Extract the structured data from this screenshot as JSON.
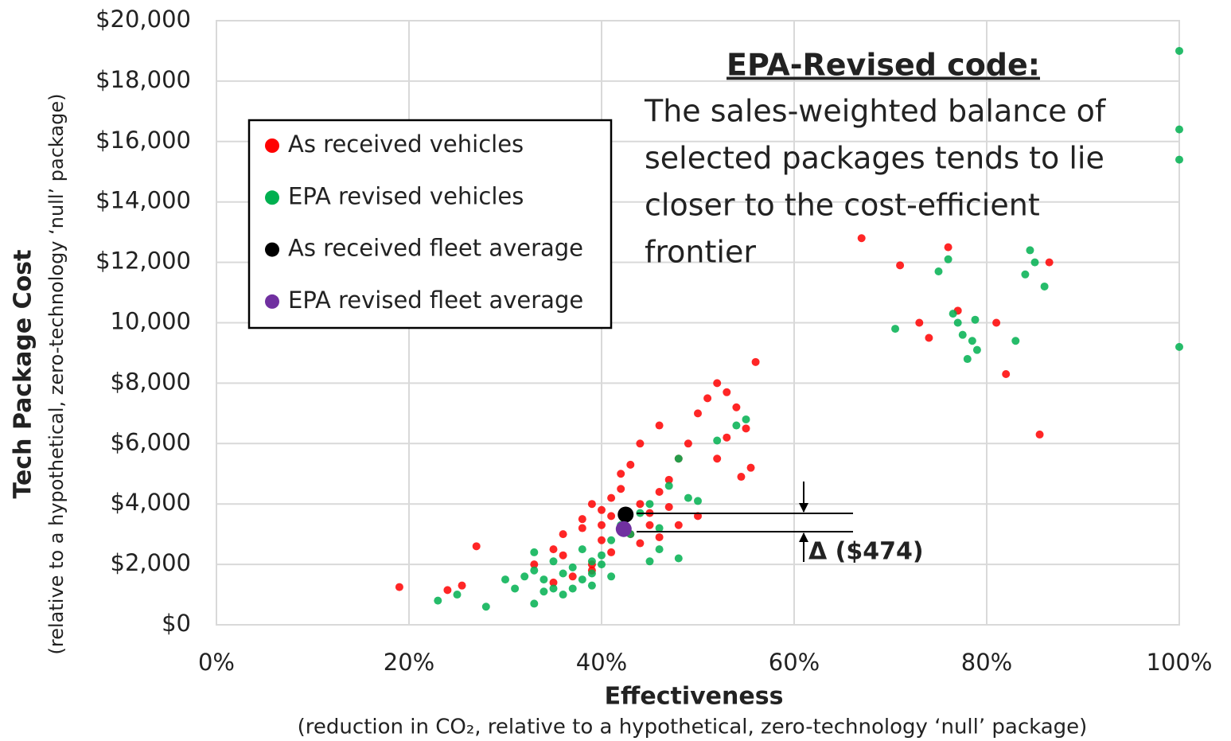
{
  "chart_data": {
    "type": "scatter",
    "x_label": "Effectiveness",
    "x_sublabel": "(reduction in CO₂, relative to a hypothetical, zero-technology ‘null’ package)",
    "y_label": "Tech Package Cost",
    "y_sublabel": "(relative to a hypothetical, zero-technology ‘null’ package)",
    "xlim": [
      0,
      100
    ],
    "ylim": [
      0,
      20000
    ],
    "xticks": [
      {
        "value": 0,
        "label": "0%"
      },
      {
        "value": 20,
        "label": "20%"
      },
      {
        "value": 40,
        "label": "40%"
      },
      {
        "value": 60,
        "label": "60%"
      },
      {
        "value": 80,
        "label": "80%"
      },
      {
        "value": 100,
        "label": "100%"
      }
    ],
    "yticks": [
      {
        "value": 0,
        "label": "$0"
      },
      {
        "value": 2000,
        "label": "$2,000"
      },
      {
        "value": 4000,
        "label": "$4,000"
      },
      {
        "value": 6000,
        "label": "$6,000"
      },
      {
        "value": 8000,
        "label": "$8,000"
      },
      {
        "value": 10000,
        "label": "10,000"
      },
      {
        "value": 12000,
        "label": "$12,000"
      },
      {
        "value": 14000,
        "label": "$14,000"
      },
      {
        "value": 16000,
        "label": "$16,000"
      },
      {
        "value": 18000,
        "label": "$18,000"
      },
      {
        "value": 20000,
        "label": "$20,000"
      }
    ],
    "grid": true,
    "legend": "upper left",
    "series": [
      {
        "name": "As received vehicles",
        "color": "#ff0000",
        "x": [
          24,
          25.5,
          19,
          27,
          33,
          35,
          36,
          38,
          39,
          40,
          41,
          42,
          43,
          44,
          45,
          46,
          47,
          48,
          49,
          50,
          51,
          52,
          53,
          54,
          55,
          55.5,
          54.5,
          56,
          40,
          41,
          39,
          37,
          43,
          44,
          46,
          48,
          42,
          38,
          40,
          45,
          47,
          50,
          53,
          52,
          77,
          85.5,
          73,
          81,
          71,
          67,
          74,
          82,
          86.5,
          76,
          44,
          46,
          41,
          36,
          39,
          35
        ],
        "values": [
          1150,
          1300,
          1250,
          2600,
          2000,
          2500,
          3000,
          3500,
          4000,
          3800,
          4200,
          4500,
          5300,
          4000,
          3700,
          4400,
          4800,
          5500,
          6000,
          7000,
          7500,
          8000,
          7700,
          7200,
          6500,
          5200,
          4900,
          8700,
          2800,
          2400,
          2000,
          1600,
          3000,
          2700,
          2900,
          3300,
          5000,
          3200,
          3300,
          3300,
          3900,
          3600,
          6200,
          5500,
          10400,
          6300,
          10000,
          10000,
          11900,
          12800,
          9500,
          8300,
          12000,
          12500,
          6000,
          6600,
          3600,
          2300,
          1800,
          1400
        ]
      },
      {
        "name": "EPA revised vehicles",
        "color": "#00b050",
        "x": [
          23,
          25,
          28,
          31,
          32,
          33,
          34,
          35,
          36,
          37,
          38,
          39,
          40,
          41,
          42,
          43,
          44,
          45,
          46,
          47,
          48,
          49,
          50,
          52,
          54,
          55,
          37,
          36,
          34,
          38,
          39,
          40,
          35,
          33,
          30,
          46,
          45,
          48,
          76.5,
          77,
          77.5,
          78.5,
          79,
          78.8,
          75,
          76,
          84.5,
          85,
          84,
          83,
          78,
          70.5,
          100,
          100,
          100,
          100,
          86,
          33,
          39,
          41
        ],
        "values": [
          800,
          1000,
          600,
          1200,
          1600,
          1800,
          1500,
          1200,
          1700,
          1900,
          1500,
          2100,
          2300,
          2800,
          3300,
          3000,
          3700,
          4000,
          3200,
          4600,
          5500,
          4200,
          4100,
          6100,
          6600,
          6800,
          1200,
          1000,
          1100,
          2500,
          1700,
          2000,
          2100,
          2400,
          1500,
          2500,
          2100,
          2200,
          10300,
          10000,
          9600,
          9400,
          9100,
          10100,
          11700,
          12100,
          12400,
          12000,
          11600,
          9400,
          8800,
          9800,
          19000,
          16400,
          15400,
          9200,
          11200,
          700,
          1300,
          1600
        ]
      },
      {
        "name": "As received fleet average",
        "color": "#000000",
        "x": [
          42.5
        ],
        "values": [
          3650
        ]
      },
      {
        "name": "EPA revised fleet average",
        "color": "#7030a0",
        "x": [
          42.3
        ],
        "values": [
          3170
        ]
      }
    ],
    "annotation": {
      "title": "EPA-Revised code:",
      "lines": [
        "The sales-weighted balance of",
        "selected packages tends to lie",
        "closer to the cost-efficient",
        "frontier"
      ]
    },
    "delta_label": "Δ ($474)"
  }
}
